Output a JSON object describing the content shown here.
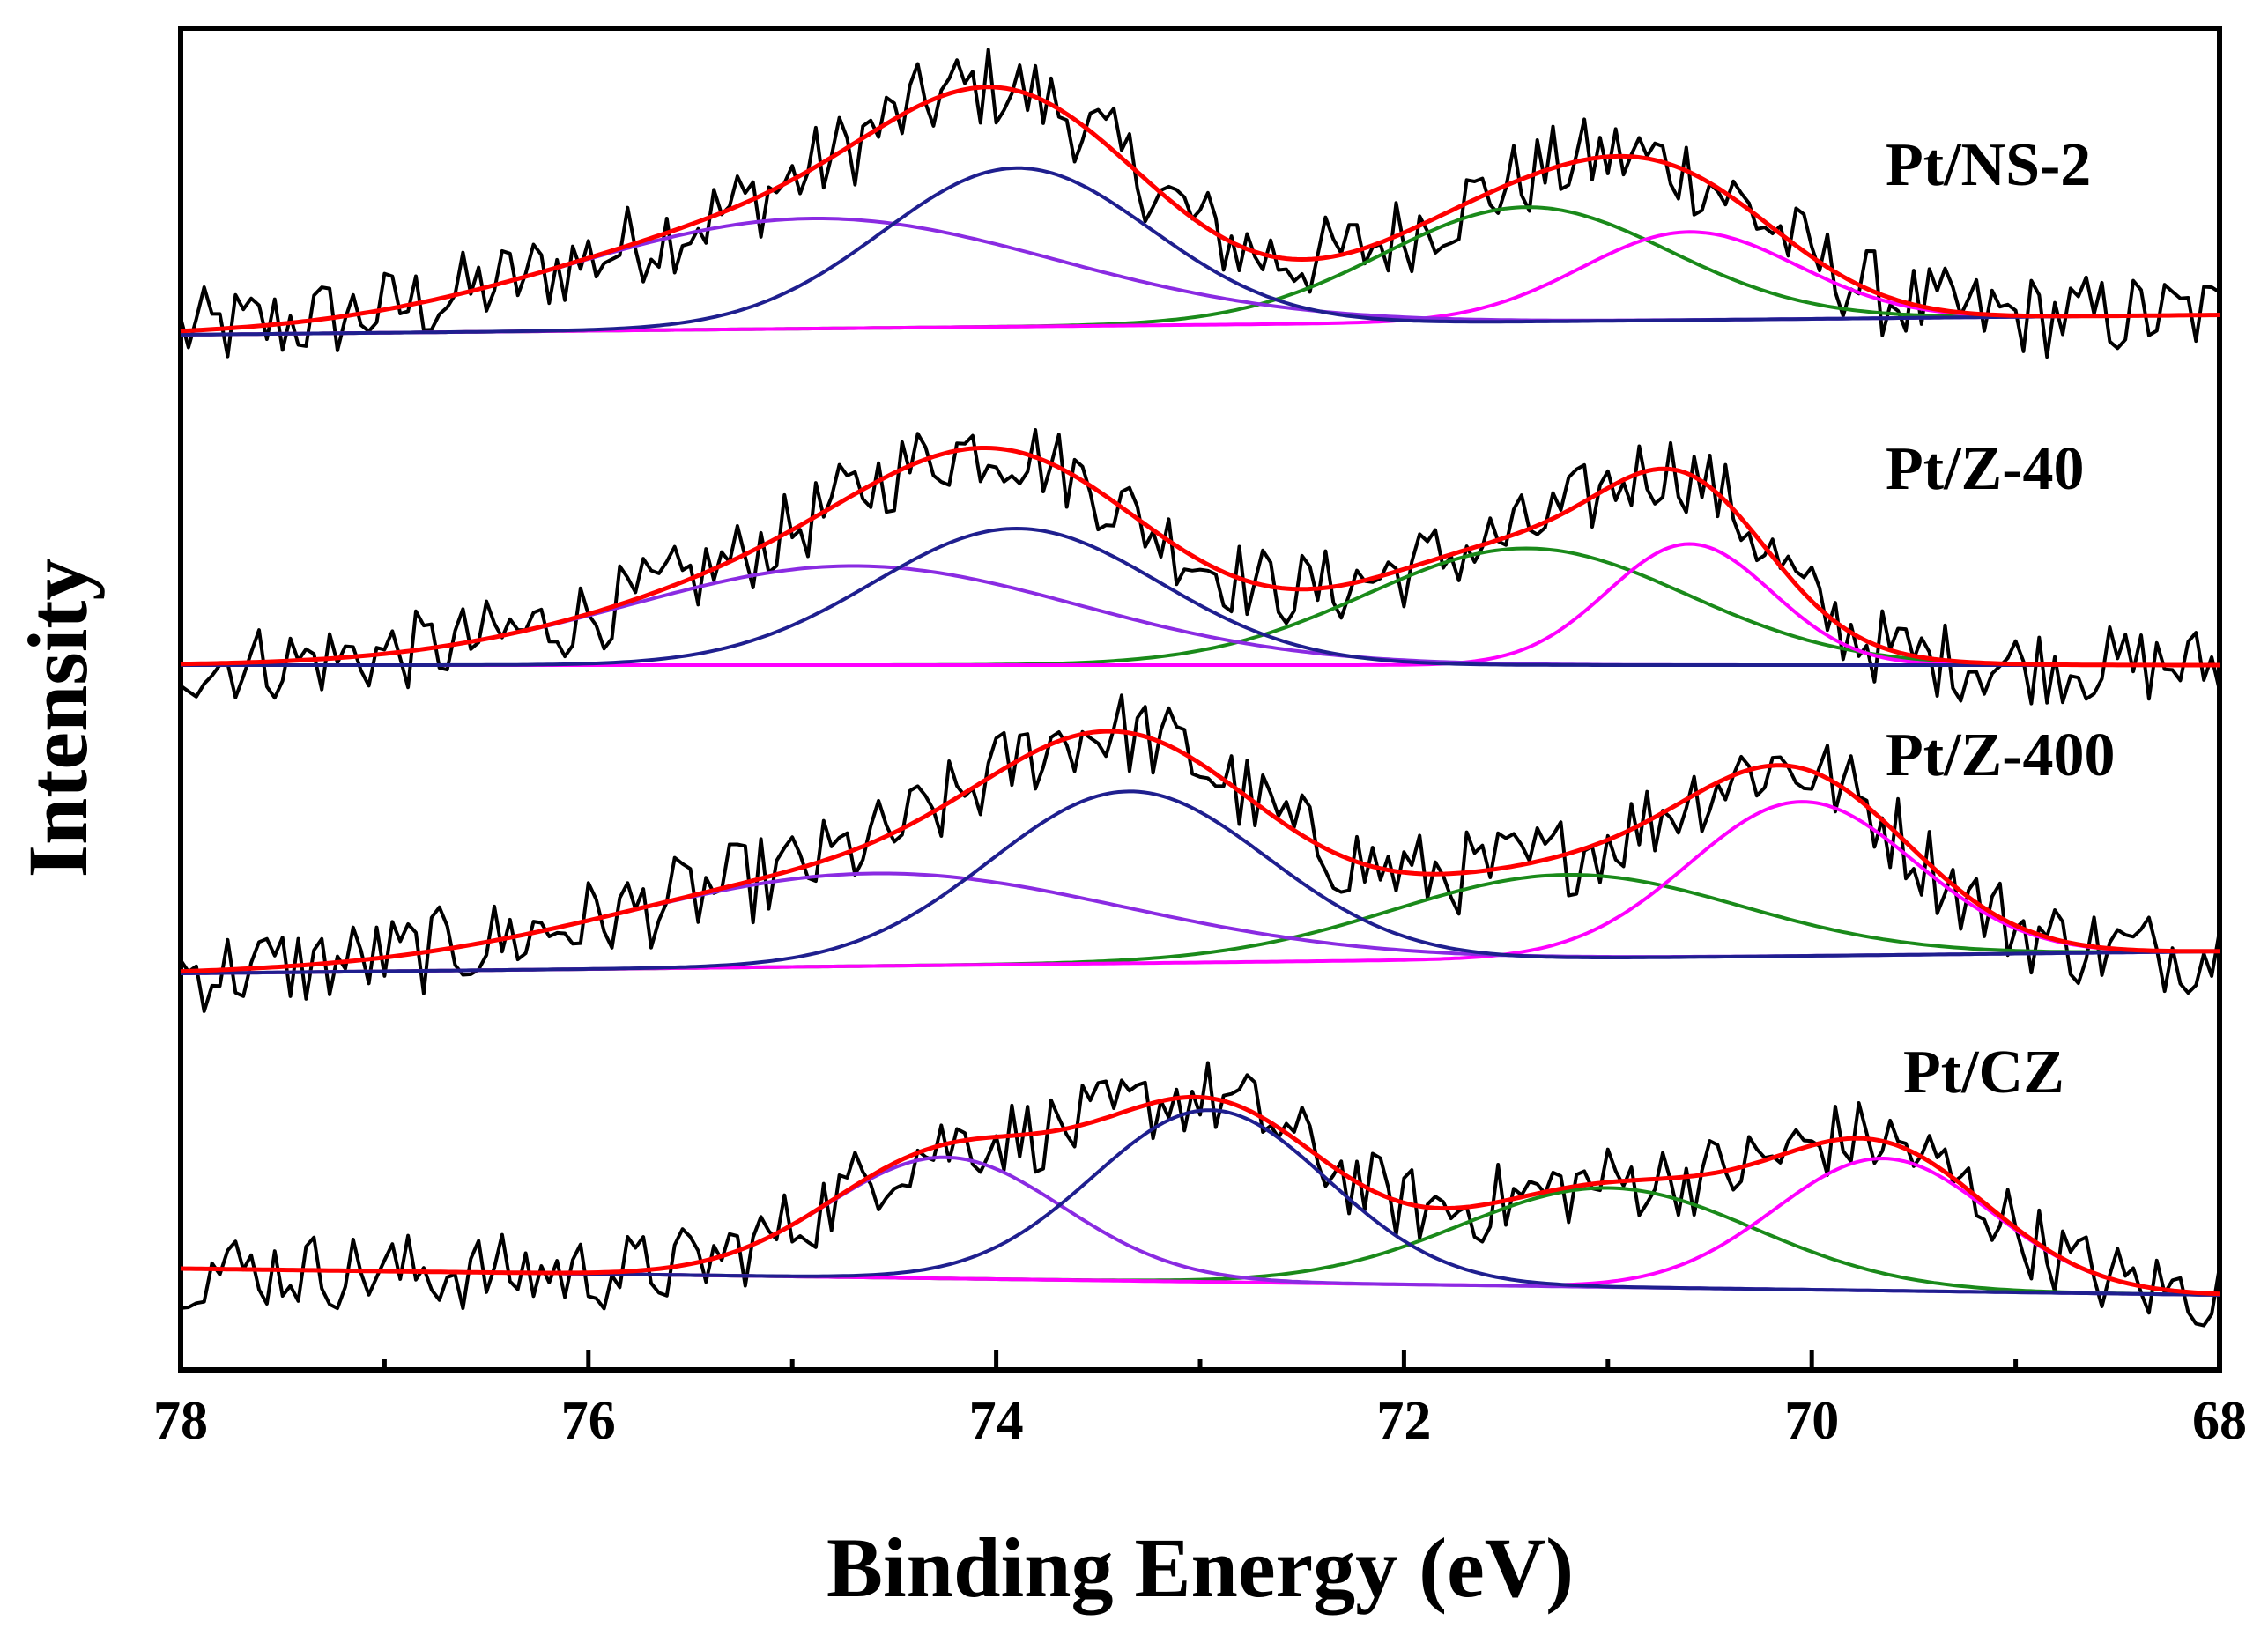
{
  "chart_data": {
    "type": "line",
    "subtype": "XPS stacked spectra with peak fitting",
    "xlabel": "Binding Energy (eV)",
    "ylabel": "Intensity",
    "xlim": [
      78,
      68
    ],
    "x_reversed": true,
    "x_ticks": [
      78,
      76,
      74,
      72,
      70,
      68
    ],
    "x_minor_step": 1,
    "y_ticks": false,
    "series_styles": {
      "raw": "#000000",
      "envelope": "#ff0000",
      "c1": "#1f1f8f",
      "c2": "#8a2be2",
      "c3": "#1a8a1a",
      "c4": "#ff00ff"
    },
    "panels": [
      {
        "label": "Pt/NS-2",
        "baseline_start": 0.0,
        "baseline_end": 0.09,
        "noise_amp": 0.26,
        "components": [
          {
            "name": "c1",
            "center": 73.9,
            "fwhm": 1.55,
            "height": 0.72
          },
          {
            "name": "c2",
            "center": 74.9,
            "fwhm": 2.8,
            "height": 0.5
          },
          {
            "name": "c3",
            "center": 71.4,
            "fwhm": 1.65,
            "height": 0.52
          },
          {
            "name": "c4",
            "center": 70.6,
            "fwhm": 1.25,
            "height": 0.4
          }
        ]
      },
      {
        "label": "Pt/Z-40",
        "baseline_start": 0.0,
        "baseline_end": 0.0,
        "noise_amp": 0.24,
        "components": [
          {
            "name": "c1",
            "center": 73.9,
            "fwhm": 1.65,
            "height": 0.62
          },
          {
            "name": "c2",
            "center": 74.7,
            "fwhm": 2.6,
            "height": 0.45
          },
          {
            "name": "c3",
            "center": 71.4,
            "fwhm": 1.85,
            "height": 0.53
          },
          {
            "name": "c4",
            "center": 70.6,
            "fwhm": 0.95,
            "height": 0.55
          }
        ]
      },
      {
        "label": "Pt/Z-400",
        "baseline_start": 0.0,
        "baseline_end": 0.1,
        "noise_amp": 0.26,
        "components": [
          {
            "name": "c1",
            "center": 73.35,
            "fwhm": 1.6,
            "height": 0.78
          },
          {
            "name": "c2",
            "center": 74.6,
            "fwhm": 2.9,
            "height": 0.42
          },
          {
            "name": "c3",
            "center": 71.2,
            "fwhm": 2.0,
            "height": 0.38
          },
          {
            "name": "c4",
            "center": 70.05,
            "fwhm": 1.3,
            "height": 0.7
          }
        ]
      },
      {
        "label": "Pt/CZ",
        "baseline_start": 0.0,
        "baseline_end": -0.12,
        "noise_amp": 0.24,
        "components": [
          {
            "name": "c1",
            "center": 72.95,
            "fwhm": 1.35,
            "height": 0.78
          },
          {
            "name": "c2",
            "center": 74.25,
            "fwhm": 1.35,
            "height": 0.55
          },
          {
            "name": "c3",
            "center": 71.0,
            "fwhm": 1.7,
            "height": 0.45
          },
          {
            "name": "c4",
            "center": 69.65,
            "fwhm": 1.25,
            "height": 0.6
          }
        ]
      }
    ]
  }
}
